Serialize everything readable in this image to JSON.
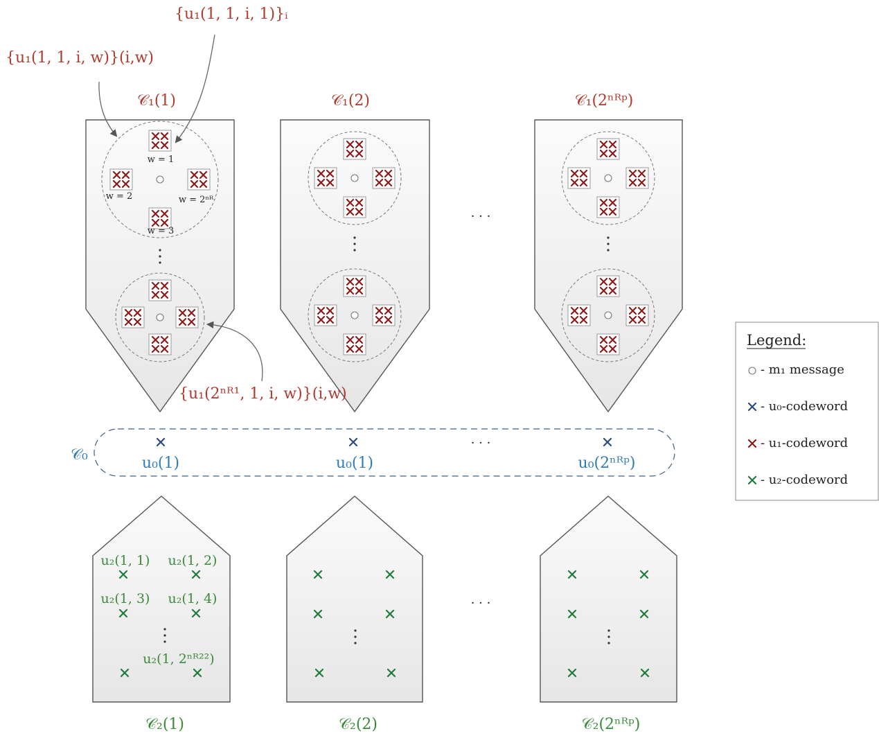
{
  "colors": {
    "u0": "#2b4a7a",
    "u1": "#8b1a1a",
    "u2": "#1f7a3a",
    "label_red": "#b03a2e",
    "label_blue": "#2f7bb5",
    "label_green": "#3a8a3a"
  },
  "annotations": {
    "top_right": "{u₁(1, 1, i, 1)}ᵢ",
    "top_left": "{u₁(1, 1, i, w)}(i,w)",
    "bottom": "{u₁(2ⁿᴿ¹, 1, i, w)}(i,w)"
  },
  "c1": {
    "titles": [
      "𝒞₁(1)",
      "𝒞₁(2)",
      "𝒞₁(2ⁿᴿᵖ)"
    ],
    "w_labels": [
      "w = 1",
      "w = 2",
      "w = 2ⁿᴿ",
      "w = 3"
    ]
  },
  "c0": {
    "label": "𝒞₀",
    "items": [
      "u₀(1)",
      "u₀(1)",
      "u₀(2ⁿᴿᵖ)"
    ]
  },
  "c2": {
    "titles": [
      "𝒞₂(1)",
      "𝒞₂(2)",
      "𝒞₂(2ⁿᴿᵖ)"
    ],
    "labels": [
      "u₂(1, 1)",
      "u₂(1, 2)",
      "u₂(1, 3)",
      "u₂(1, 4)",
      "u₂(1, 2ⁿᴿ²²)"
    ]
  },
  "ellipsis": "· · ·",
  "legend": {
    "title": "Legend:",
    "items": [
      {
        "symbol": "circle",
        "text": "- m₁ message"
      },
      {
        "symbol": "x-u0",
        "text": "- u₀-codeword"
      },
      {
        "symbol": "x-u1",
        "text": "- u₁-codeword"
      },
      {
        "symbol": "x-u2",
        "text": "- u₂-codeword"
      }
    ]
  }
}
